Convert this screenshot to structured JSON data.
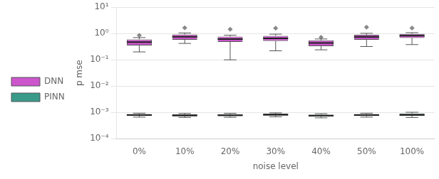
{
  "chart_data": {
    "type": "box",
    "categories": [
      "0%",
      "10%",
      "20%",
      "30%",
      "40%",
      "50%",
      "100%"
    ],
    "series": [
      {
        "name": "DNN",
        "color": "#cc55cc",
        "marker": "diamond",
        "values": [
          {
            "q1": 0.35,
            "median": 0.47,
            "q3": 0.6,
            "whislo": 0.2,
            "whishi": 0.7,
            "fliers": [
              0.85
            ]
          },
          {
            "q1": 0.58,
            "median": 0.75,
            "q3": 0.92,
            "whislo": 0.42,
            "whishi": 1.05,
            "fliers": [
              1.65
            ]
          },
          {
            "q1": 0.48,
            "median": 0.62,
            "q3": 0.76,
            "whislo": 0.1,
            "whishi": 0.86,
            "fliers": [
              1.45
            ]
          },
          {
            "q1": 0.52,
            "median": 0.66,
            "q3": 0.82,
            "whislo": 0.22,
            "whishi": 0.95,
            "fliers": [
              1.6
            ]
          },
          {
            "q1": 0.33,
            "median": 0.44,
            "q3": 0.55,
            "whislo": 0.24,
            "whishi": 0.62,
            "fliers": [
              0.72
            ]
          },
          {
            "q1": 0.58,
            "median": 0.74,
            "q3": 0.9,
            "whislo": 0.32,
            "whishi": 1.02,
            "fliers": [
              1.75
            ]
          },
          {
            "q1": 0.68,
            "median": 0.83,
            "q3": 0.97,
            "whislo": 0.38,
            "whishi": 1.08,
            "fliers": [
              1.62
            ]
          }
        ]
      },
      {
        "name": "PINN",
        "color": "#3a9a8a",
        "marker": "diamond",
        "values": [
          {
            "q1": 0.00074,
            "median": 0.00079,
            "q3": 0.00086,
            "whislo": 0.00066,
            "whishi": 0.00093,
            "fliers": []
          },
          {
            "q1": 0.00071,
            "median": 0.00077,
            "q3": 0.00084,
            "whislo": 0.00064,
            "whishi": 0.00091,
            "fliers": []
          },
          {
            "q1": 0.00072,
            "median": 0.00078,
            "q3": 0.00085,
            "whislo": 0.00065,
            "whishi": 0.00092,
            "fliers": []
          },
          {
            "q1": 0.00075,
            "median": 0.00081,
            "q3": 0.00089,
            "whislo": 0.00068,
            "whishi": 0.00096,
            "fliers": []
          },
          {
            "q1": 0.00069,
            "median": 0.00075,
            "q3": 0.00082,
            "whislo": 0.00062,
            "whishi": 0.00089,
            "fliers": []
          },
          {
            "q1": 0.00073,
            "median": 0.00079,
            "q3": 0.00086,
            "whislo": 0.00066,
            "whishi": 0.00093,
            "fliers": []
          },
          {
            "q1": 0.00074,
            "median": 0.0008,
            "q3": 0.00091,
            "whislo": 0.00064,
            "whishi": 0.00101,
            "fliers": []
          }
        ]
      }
    ],
    "xlabel": "noise level",
    "ylabel": "p mse",
    "log": "y",
    "ylim": [
      0.0001,
      10
    ],
    "yticks": [
      {
        "value": 0.0001,
        "label": "10⁻⁴"
      },
      {
        "value": 0.001,
        "label": "10⁻³"
      },
      {
        "value": 0.01,
        "label": "10⁻²"
      },
      {
        "value": 0.1,
        "label": "10⁻¹"
      },
      {
        "value": 1,
        "label": "10⁰"
      },
      {
        "value": 10,
        "label": "10¹"
      }
    ],
    "grid": true,
    "legend": "center left"
  }
}
